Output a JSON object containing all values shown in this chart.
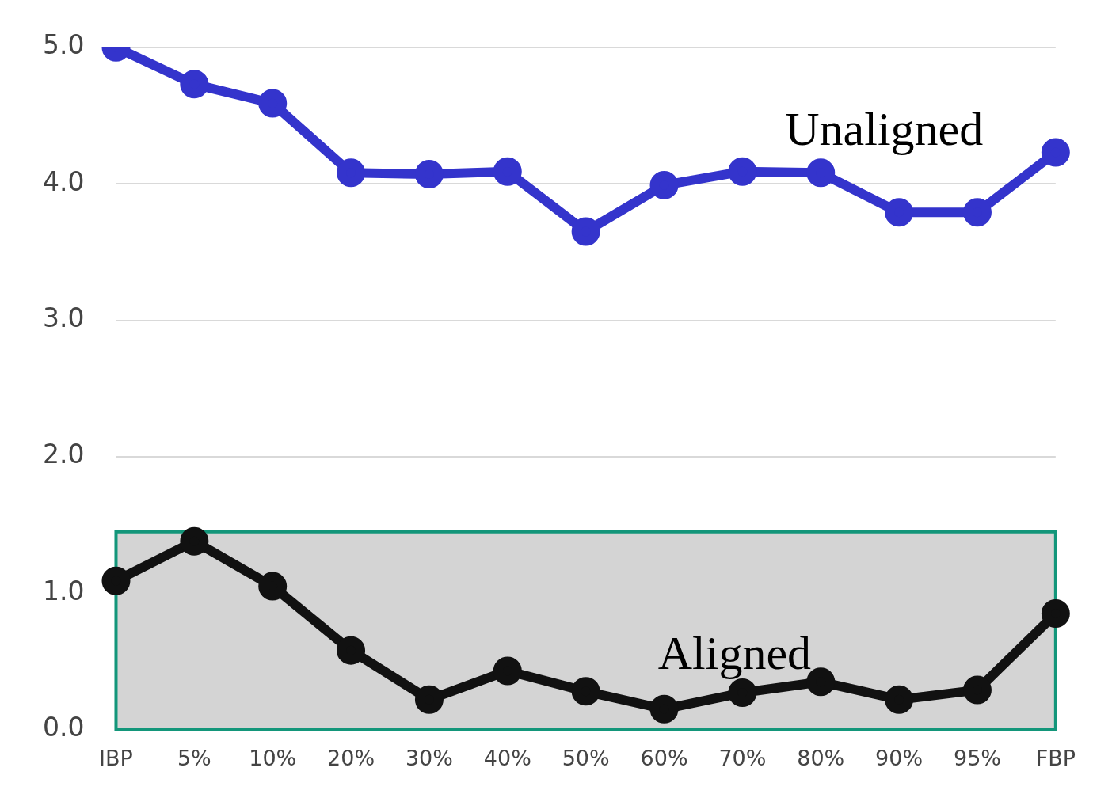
{
  "chart_data": {
    "type": "line",
    "categories": [
      "IBP",
      "5%",
      "10%",
      "20%",
      "30%",
      "40%",
      "50%",
      "60%",
      "70%",
      "80%",
      "90%",
      "95%",
      "FBP"
    ],
    "series": [
      {
        "name": "Unaligned",
        "color": "#3434cc",
        "values": [
          5.0,
          4.73,
          4.59,
          4.08,
          4.07,
          4.09,
          3.65,
          3.99,
          4.09,
          4.08,
          3.79,
          3.79,
          4.23
        ]
      },
      {
        "name": "Aligned",
        "color": "#111111",
        "values": [
          1.09,
          1.38,
          1.05,
          0.58,
          0.22,
          0.43,
          0.28,
          0.15,
          0.27,
          0.35,
          0.22,
          0.29,
          0.85
        ]
      }
    ],
    "ylim": [
      0,
      5
    ],
    "yticks": [
      {
        "value": 0,
        "label": "0.0"
      },
      {
        "value": 1,
        "label": "1.0"
      },
      {
        "value": 2,
        "label": "2.0"
      },
      {
        "value": 3,
        "label": "3.0"
      },
      {
        "value": 4,
        "label": "4.0"
      },
      {
        "value": 5,
        "label": "5.0"
      }
    ],
    "grid": "y",
    "legend": false,
    "marker": "circle",
    "line_style": "solid",
    "bands": [
      {
        "axis": "y",
        "from": 0,
        "to": 1.45,
        "color": "#d4d4d4"
      }
    ]
  }
}
